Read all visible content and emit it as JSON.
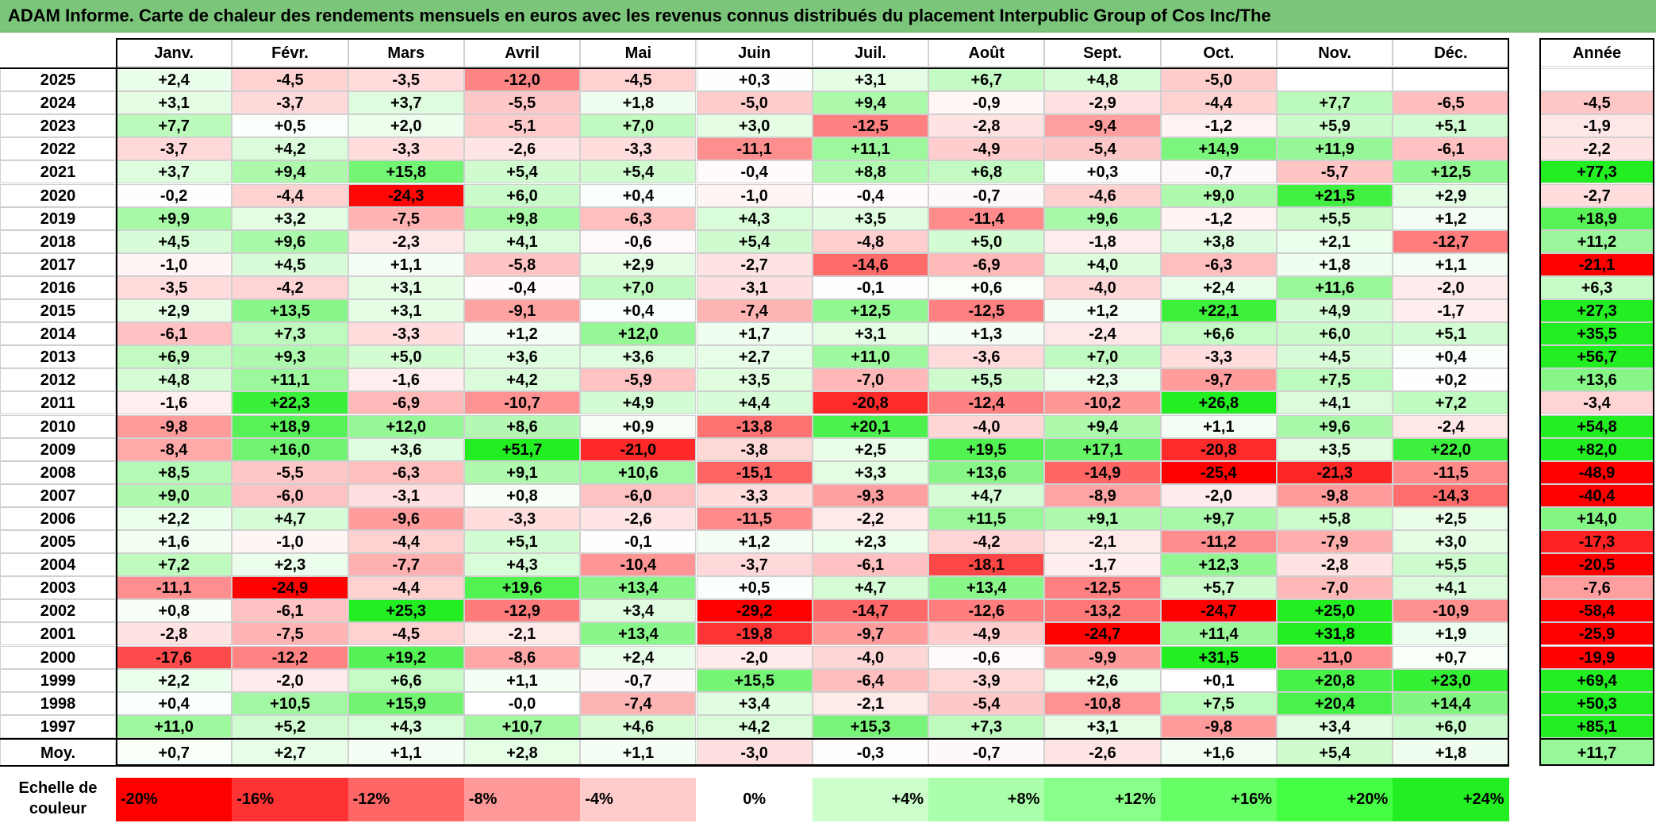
{
  "title": "ADAM Informe. Carte de chaleur des rendements mensuels en euros avec les revenus connus distribués du placement Interpublic Group of Cos Inc/The",
  "colors": {
    "title_bg": "#7cc67c",
    "max_red": "#ff0000",
    "max_green": "#22ee22",
    "neutral": "#ffffff"
  },
  "chart_data": {
    "type": "heatmap",
    "months": [
      "Janv.",
      "Févr.",
      "Mars",
      "Avril",
      "Mai",
      "Juin",
      "Juil.",
      "Août",
      "Sept.",
      "Oct.",
      "Nov.",
      "Déc."
    ],
    "year_header": "Année",
    "rows": [
      {
        "year": "2025",
        "values": [
          "+2,4",
          "-4,5",
          "-3,5",
          "-12,0",
          "-4,5",
          "+0,3",
          "+3,1",
          "+6,7",
          "+4,8",
          "-5,0",
          "",
          ""
        ],
        "annual": ""
      },
      {
        "year": "2024",
        "values": [
          "+3,1",
          "-3,7",
          "+3,7",
          "-5,5",
          "+1,8",
          "-5,0",
          "+9,4",
          "-0,9",
          "-2,9",
          "-4,4",
          "+7,7",
          "-6,5"
        ],
        "annual": "-4,5"
      },
      {
        "year": "2023",
        "values": [
          "+7,7",
          "+0,5",
          "+2,0",
          "-5,1",
          "+7,0",
          "+3,0",
          "-12,5",
          "-2,8",
          "-9,4",
          "-1,2",
          "+5,9",
          "+5,1"
        ],
        "annual": "-1,9"
      },
      {
        "year": "2022",
        "values": [
          "-3,7",
          "+4,2",
          "-3,3",
          "-2,6",
          "-3,3",
          "-11,1",
          "+11,1",
          "-4,9",
          "-5,4",
          "+14,9",
          "+11,9",
          "-6,1"
        ],
        "annual": "-2,2"
      },
      {
        "year": "2021",
        "values": [
          "+3,7",
          "+9,4",
          "+15,8",
          "+5,4",
          "+5,4",
          "-0,4",
          "+8,8",
          "+6,8",
          "+0,3",
          "-0,7",
          "-5,7",
          "+12,5"
        ],
        "annual": "+77,3"
      },
      {
        "year": "2020",
        "values": [
          "-0,2",
          "-4,4",
          "-24,3",
          "+6,0",
          "+0,4",
          "-1,0",
          "-0,4",
          "-0,7",
          "-4,6",
          "+9,0",
          "+21,5",
          "+2,9"
        ],
        "annual": "-2,7"
      },
      {
        "year": "2019",
        "values": [
          "+9,9",
          "+3,2",
          "-7,5",
          "+9,8",
          "-6,3",
          "+4,3",
          "+3,5",
          "-11,4",
          "+9,6",
          "-1,2",
          "+5,5",
          "+1,2"
        ],
        "annual": "+18,9"
      },
      {
        "year": "2018",
        "values": [
          "+4,5",
          "+9,6",
          "-2,3",
          "+4,1",
          "-0,6",
          "+5,4",
          "-4,8",
          "+5,0",
          "-1,8",
          "+3,8",
          "+2,1",
          "-12,7"
        ],
        "annual": "+11,2"
      },
      {
        "year": "2017",
        "values": [
          "-1,0",
          "+4,5",
          "+1,1",
          "-5,8",
          "+2,9",
          "-2,7",
          "-14,6",
          "-6,9",
          "+4,0",
          "-6,3",
          "+1,8",
          "+1,1"
        ],
        "annual": "-21,1"
      },
      {
        "year": "2016",
        "values": [
          "-3,5",
          "-4,2",
          "+3,1",
          "-0,4",
          "+7,0",
          "-3,1",
          "-0,1",
          "+0,6",
          "-4,0",
          "+2,4",
          "+11,6",
          "-2,0"
        ],
        "annual": "+6,3"
      },
      {
        "year": "2015",
        "values": [
          "+2,9",
          "+13,5",
          "+3,1",
          "-9,1",
          "+0,4",
          "-7,4",
          "+12,5",
          "-12,5",
          "+1,2",
          "+22,1",
          "+4,9",
          "-1,7"
        ],
        "annual": "+27,3"
      },
      {
        "year": "2014",
        "values": [
          "-6,1",
          "+7,3",
          "-3,3",
          "+1,2",
          "+12,0",
          "+1,7",
          "+3,1",
          "+1,3",
          "-2,4",
          "+6,6",
          "+6,0",
          "+5,1"
        ],
        "annual": "+35,5"
      },
      {
        "year": "2013",
        "values": [
          "+6,9",
          "+9,3",
          "+5,0",
          "+3,6",
          "+3,6",
          "+2,7",
          "+11,0",
          "-3,6",
          "+7,0",
          "-3,3",
          "+4,5",
          "+0,4"
        ],
        "annual": "+56,7"
      },
      {
        "year": "2012",
        "values": [
          "+4,8",
          "+11,1",
          "-1,6",
          "+4,2",
          "-5,9",
          "+3,5",
          "-7,0",
          "+5,5",
          "+2,3",
          "-9,7",
          "+7,5",
          "+0,2"
        ],
        "annual": "+13,6"
      },
      {
        "year": "2011",
        "values": [
          "-1,6",
          "+22,3",
          "-6,9",
          "-10,7",
          "+4,9",
          "+4,4",
          "-20,8",
          "-12,4",
          "-10,2",
          "+26,8",
          "+4,1",
          "+7,2"
        ],
        "annual": "-3,4"
      },
      {
        "year": "2010",
        "values": [
          "-9,8",
          "+18,9",
          "+12,0",
          "+8,6",
          "+0,9",
          "-13,8",
          "+20,1",
          "-4,0",
          "+9,4",
          "+1,1",
          "+9,6",
          "-2,4"
        ],
        "annual": "+54,8"
      },
      {
        "year": "2009",
        "values": [
          "-8,4",
          "+16,0",
          "+3,6",
          "+51,7",
          "-21,0",
          "-3,8",
          "+2,5",
          "+19,5",
          "+17,1",
          "-20,8",
          "+3,5",
          "+22,0"
        ],
        "annual": "+82,0"
      },
      {
        "year": "2008",
        "values": [
          "+8,5",
          "-5,5",
          "-6,3",
          "+9,1",
          "+10,6",
          "-15,1",
          "+3,3",
          "+13,6",
          "-14,9",
          "-25,4",
          "-21,3",
          "-11,5"
        ],
        "annual": "-48,9"
      },
      {
        "year": "2007",
        "values": [
          "+9,0",
          "-6,0",
          "-3,1",
          "+0,8",
          "-6,0",
          "-3,3",
          "-9,3",
          "+4,7",
          "-8,9",
          "-2,0",
          "-9,8",
          "-14,3"
        ],
        "annual": "-40,4"
      },
      {
        "year": "2006",
        "values": [
          "+2,2",
          "+4,7",
          "-9,6",
          "-3,3",
          "-2,6",
          "-11,5",
          "-2,2",
          "+11,5",
          "+9,1",
          "+9,7",
          "+5,8",
          "+2,5"
        ],
        "annual": "+14,0"
      },
      {
        "year": "2005",
        "values": [
          "+1,6",
          "-1,0",
          "-4,4",
          "+5,1",
          "-0,1",
          "+1,2",
          "+2,3",
          "-4,2",
          "-2,1",
          "-11,2",
          "-7,9",
          "+3,0"
        ],
        "annual": "-17,3"
      },
      {
        "year": "2004",
        "values": [
          "+7,2",
          "+2,3",
          "-7,7",
          "+4,3",
          "-10,4",
          "-3,7",
          "-6,1",
          "-18,1",
          "-1,7",
          "+12,3",
          "-2,8",
          "+5,5"
        ],
        "annual": "-20,5"
      },
      {
        "year": "2003",
        "values": [
          "-11,1",
          "-24,9",
          "-4,4",
          "+19,6",
          "+13,4",
          "+0,5",
          "+4,7",
          "+13,4",
          "-12,5",
          "+5,7",
          "-7,0",
          "+4,1"
        ],
        "annual": "-7,6"
      },
      {
        "year": "2002",
        "values": [
          "+0,8",
          "-6,1",
          "+25,3",
          "-12,9",
          "+3,4",
          "-29,2",
          "-14,7",
          "-12,6",
          "-13,2",
          "-24,7",
          "+25,0",
          "-10,9"
        ],
        "annual": "-58,4"
      },
      {
        "year": "2001",
        "values": [
          "-2,8",
          "-7,5",
          "-4,5",
          "-2,1",
          "+13,4",
          "-19,8",
          "-9,7",
          "-4,9",
          "-24,7",
          "+11,4",
          "+31,8",
          "+1,9"
        ],
        "annual": "-25,9"
      },
      {
        "year": "2000",
        "values": [
          "-17,6",
          "-12,2",
          "+19,2",
          "-8,6",
          "+2,4",
          "-2,0",
          "-4,0",
          "-0,6",
          "-9,9",
          "+31,5",
          "-11,0",
          "+0,7"
        ],
        "annual": "-19,9"
      },
      {
        "year": "1999",
        "values": [
          "+2,2",
          "-2,0",
          "+6,6",
          "+1,1",
          "-0,7",
          "+15,5",
          "-6,4",
          "-3,9",
          "+2,6",
          "+0,1",
          "+20,8",
          "+23,0"
        ],
        "annual": "+69,4"
      },
      {
        "year": "1998",
        "values": [
          "+0,4",
          "+10,5",
          "+15,9",
          "-0,0",
          "-7,4",
          "+3,4",
          "-2,1",
          "-5,4",
          "-10,8",
          "+7,5",
          "+20,4",
          "+14,4"
        ],
        "annual": "+50,3"
      },
      {
        "year": "1997",
        "values": [
          "+11,0",
          "+5,2",
          "+4,3",
          "+10,7",
          "+4,6",
          "+4,2",
          "+15,3",
          "+7,3",
          "+3,1",
          "-9,8",
          "+3,4",
          "+6,0"
        ],
        "annual": "+85,1"
      }
    ],
    "average": {
      "label": "Moy.",
      "values": [
        "+0,7",
        "+2,7",
        "+1,1",
        "+2,8",
        "+1,1",
        "-3,0",
        "-0,3",
        "-0,7",
        "-2,6",
        "+1,6",
        "+5,4",
        "+1,8"
      ],
      "annual": "+11,7"
    },
    "scale": {
      "label_line1": "Echelle de",
      "label_line2": "couleur",
      "items": [
        "-20%",
        "-16%",
        "-12%",
        "-8%",
        "-4%",
        "0%",
        "+4%",
        "+8%",
        "+12%",
        "+16%",
        "+20%",
        "+24%"
      ]
    }
  }
}
